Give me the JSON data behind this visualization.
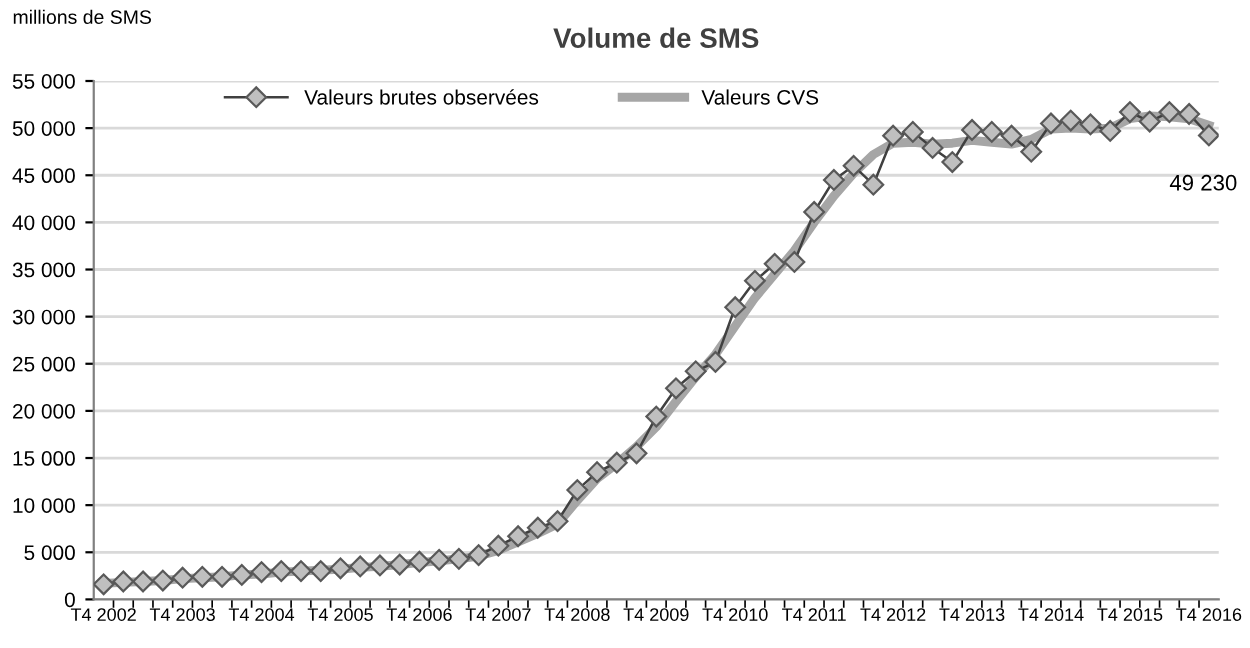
{
  "chart_data": {
    "type": "line",
    "title": "Volume de SMS",
    "ylabel": "millions de SMS",
    "categories": [
      "T4 2002",
      null,
      null,
      null,
      "T4 2003",
      null,
      null,
      null,
      "T4 2004",
      null,
      null,
      null,
      "T4 2005",
      null,
      null,
      null,
      "T4 2006",
      null,
      null,
      null,
      "T4 2007",
      null,
      null,
      null,
      "T4 2008",
      null,
      null,
      null,
      "T4 2009",
      null,
      null,
      null,
      "T4 2010",
      null,
      null,
      null,
      "T4 2011",
      null,
      null,
      null,
      "T4 2012",
      null,
      null,
      null,
      "T4 2013",
      null,
      null,
      null,
      "T4 2014",
      null,
      null,
      null,
      "T4 2015",
      null,
      null,
      null,
      "T4 2016"
    ],
    "series": [
      {
        "name": "Valeurs brutes observées",
        "color": "#404040",
        "marker": "diamond",
        "values": [
          1600,
          1900,
          1900,
          2000,
          2300,
          2400,
          2400,
          2600,
          2900,
          3000,
          3000,
          3000,
          3300,
          3500,
          3600,
          3700,
          4000,
          4200,
          4300,
          4700,
          5700,
          6700,
          7600,
          8300,
          11600,
          13500,
          14500,
          15500,
          19400,
          22400,
          24200,
          25200,
          31000,
          33800,
          35600,
          35800,
          41100,
          44500,
          46000,
          44000,
          49200,
          49600,
          47900,
          46400,
          49800,
          49600,
          49200,
          47500,
          50500,
          50800,
          50400,
          49700,
          51700,
          50700,
          51700,
          51500,
          49230
        ]
      },
      {
        "name": "Valeurs CVS",
        "color": "#a6a6a6",
        "marker": "none",
        "values": [
          1700,
          1800,
          1900,
          2000,
          2200,
          2300,
          2400,
          2600,
          2700,
          2900,
          3000,
          3100,
          3200,
          3400,
          3500,
          3700,
          3900,
          4100,
          4300,
          4600,
          5200,
          6100,
          7000,
          8000,
          10500,
          12800,
          14400,
          16200,
          18300,
          21000,
          23600,
          26000,
          29000,
          32000,
          34500,
          37000,
          40000,
          42800,
          45200,
          47200,
          48400,
          48500,
          48300,
          48400,
          48700,
          48500,
          48300,
          48800,
          49900,
          50000,
          49900,
          50000,
          51000,
          51300,
          51200,
          51000,
          50300
        ]
      }
    ],
    "ylim": [
      0,
      55000
    ],
    "yticks": [
      0,
      {
        "value": 5000,
        "label": "5 000"
      },
      {
        "value": 10000,
        "label": "10 000"
      },
      {
        "value": 15000,
        "label": "15 000"
      },
      {
        "value": 20000,
        "label": "20 000"
      },
      {
        "value": 25000,
        "label": "25 000"
      },
      {
        "value": 30000,
        "label": "30 000"
      },
      {
        "value": 35000,
        "label": "35 000"
      },
      {
        "value": 40000,
        "label": "40 000"
      },
      {
        "value": 45000,
        "label": "45 000"
      },
      {
        "value": 50000,
        "label": "50 000"
      },
      {
        "value": 55000,
        "label": "55 000"
      }
    ],
    "grid": "y",
    "legend": "top left",
    "line_style": "solid",
    "annotations": [
      {
        "text": "49 230",
        "x": "T4 2016",
        "y": 49230
      }
    ]
  }
}
